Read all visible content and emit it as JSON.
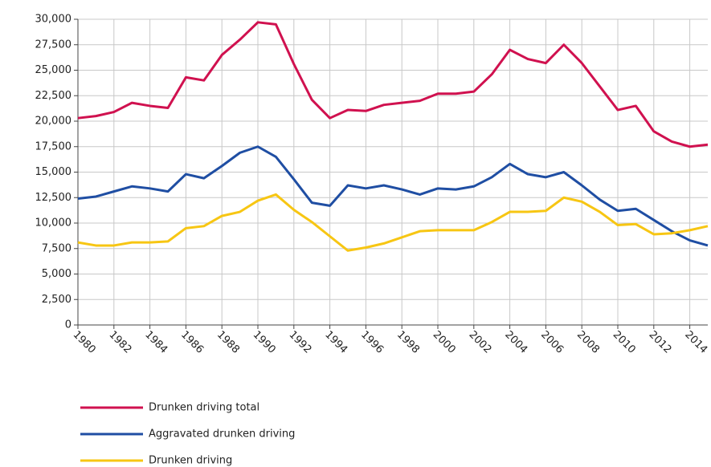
{
  "chart_data": {
    "type": "line",
    "x": [
      1980,
      1981,
      1982,
      1983,
      1984,
      1985,
      1986,
      1987,
      1988,
      1989,
      1990,
      1991,
      1992,
      1993,
      1994,
      1995,
      1996,
      1997,
      1998,
      1999,
      2000,
      2001,
      2002,
      2003,
      2004,
      2005,
      2006,
      2007,
      2008,
      2009,
      2010,
      2011,
      2012,
      2013,
      2014,
      2015
    ],
    "series": [
      {
        "name": "Drunken driving total",
        "color": "#d0114f",
        "values": [
          20300,
          20500,
          20900,
          21800,
          21500,
          21300,
          24300,
          24000,
          26500,
          28000,
          29700,
          29500,
          25600,
          22100,
          20300,
          21100,
          21000,
          21600,
          21800,
          22000,
          22700,
          22700,
          22900,
          24600,
          27000,
          26100,
          25700,
          27500,
          25700,
          23400,
          21100,
          21500,
          19000,
          18000,
          17500,
          17700
        ]
      },
      {
        "name": "Aggravated drunken driving",
        "color": "#1f4ea3",
        "values": [
          12400,
          12600,
          13100,
          13600,
          13400,
          13100,
          14800,
          14400,
          15600,
          16900,
          17500,
          16500,
          14300,
          12000,
          11700,
          13700,
          13400,
          13700,
          13300,
          12800,
          13400,
          13300,
          13600,
          14500,
          15800,
          14800,
          14500,
          15000,
          13700,
          12300,
          11200,
          11400,
          10300,
          9200,
          8300,
          7800
        ]
      },
      {
        "name": "Drunken driving",
        "color": "#f7c613",
        "values": [
          8100,
          7800,
          7800,
          8100,
          8100,
          8200,
          9500,
          9700,
          10700,
          11100,
          12200,
          12800,
          11300,
          10100,
          8700,
          7300,
          7600,
          8000,
          8600,
          9200,
          9300,
          9300,
          9300,
          10100,
          11100,
          11100,
          11200,
          12500,
          12100,
          11100,
          9800,
          9900,
          8900,
          9000,
          9300,
          9700
        ]
      }
    ],
    "xlim": [
      1980,
      2015
    ],
    "xticks": [
      1980,
      1982,
      1984,
      1986,
      1988,
      1990,
      1992,
      1994,
      1996,
      1998,
      2000,
      2002,
      2004,
      2006,
      2008,
      2010,
      2012,
      2014
    ],
    "ylim": [
      0,
      30000
    ],
    "yticks": [
      0,
      {
        "value": 2500,
        "label": "2,500"
      },
      {
        "value": 5000,
        "label": "5,000"
      },
      {
        "value": 7500,
        "label": "7,500"
      },
      {
        "value": 10000,
        "label": "10,000"
      },
      {
        "value": 12500,
        "label": "12,500"
      },
      {
        "value": 15000,
        "label": "15,000"
      },
      {
        "value": 17500,
        "label": "17,500"
      },
      {
        "value": 20000,
        "label": "20,000"
      },
      {
        "value": 22500,
        "label": "22,500"
      },
      {
        "value": 25000,
        "label": "25,000"
      },
      {
        "value": 27500,
        "label": "27,500"
      },
      {
        "value": 30000,
        "label": "30,000"
      }
    ],
    "grid": true
  }
}
